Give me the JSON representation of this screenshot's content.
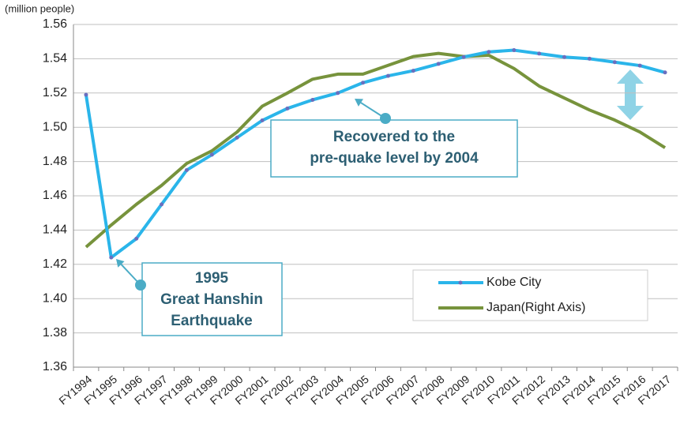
{
  "chart_data": {
    "type": "line",
    "y_label": "(million people)",
    "categories": [
      "FY1994",
      "FY1995",
      "FY1996",
      "FY1997",
      "FY1998",
      "FY1999",
      "FY2000",
      "FY2001",
      "FY2002",
      "FY2003",
      "FY2004",
      "FY2005",
      "FY2006",
      "FY2007",
      "FY2008",
      "FY2009",
      "FY2010",
      "FY2011",
      "FY2012",
      "FY2013",
      "FY2014",
      "FY2015",
      "FY2016",
      "FY2017"
    ],
    "series": [
      {
        "name": "Kobe City",
        "color": "#2ab5ea",
        "marker_color": "#6a6fbf",
        "axis": "y",
        "values": [
          1.519,
          1.424,
          1.435,
          1.455,
          1.475,
          1.484,
          1.494,
          1.504,
          1.511,
          1.516,
          1.52,
          1.526,
          1.53,
          1.533,
          1.537,
          1.541,
          1.544,
          1.545,
          1.543,
          1.541,
          1.54,
          1.538,
          1.536,
          1.532
        ]
      },
      {
        "name": "Japan(Right Axis)",
        "color": "#77933c",
        "axis": "y2",
        "values": [
          125.0,
          125.35,
          125.68,
          125.98,
          126.33,
          126.53,
          126.83,
          127.24,
          127.45,
          127.67,
          127.75,
          127.75,
          127.89,
          128.03,
          128.08,
          128.03,
          128.05,
          127.84,
          127.56,
          127.37,
          127.18,
          127.02,
          126.83,
          126.58
        ]
      }
    ],
    "ylim": [
      1.36,
      1.56
    ],
    "yticks": [
      1.36,
      1.38,
      {
        "value": 1.4,
        "label": "1.40"
      },
      1.42,
      1.44,
      1.46,
      1.48,
      {
        "value": 1.5,
        "label": "1.50"
      },
      1.52,
      1.54,
      1.56
    ],
    "y2lim": [
      123.09,
      128.54
    ],
    "grid": true,
    "legend": "lower-right",
    "annotations": [
      {
        "lines": [
          "1995",
          "Great Hanshin",
          "Earthquake"
        ]
      },
      {
        "lines": [
          "Recovered to the",
          "pre-quake level by 2004"
        ]
      }
    ]
  }
}
